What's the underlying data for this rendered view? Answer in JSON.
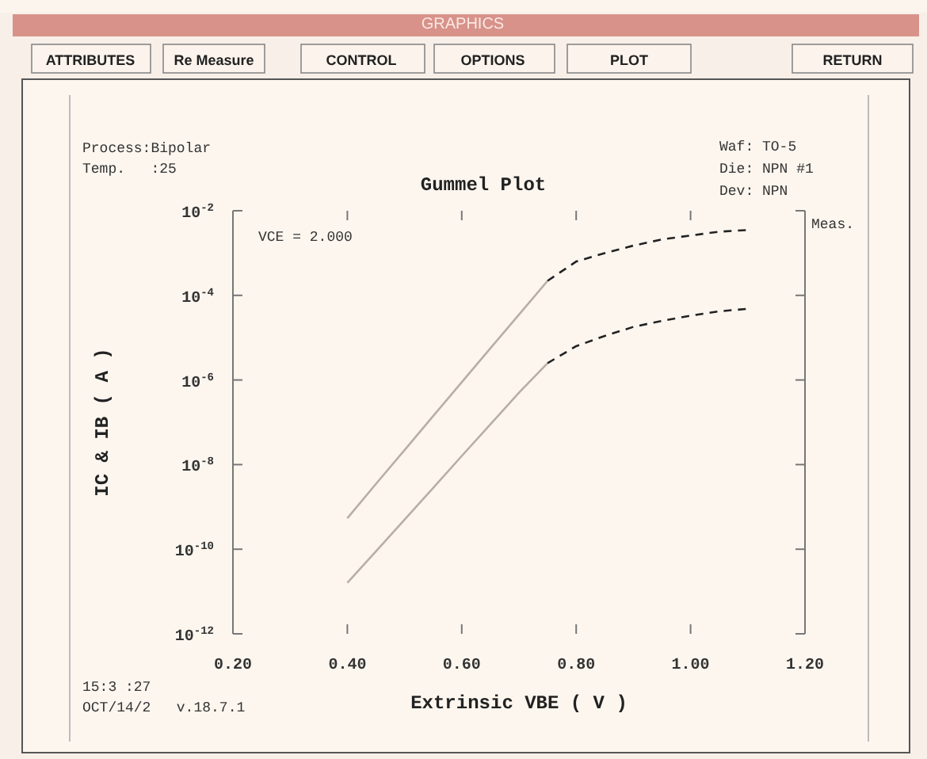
{
  "chart_data": {
    "type": "line",
    "title": "Gummel Plot",
    "xlabel": "Extrinsic VBE ( V )",
    "ylabel": "IC & IB ( A )",
    "log": true,
    "grid": false,
    "marker": "none",
    "xlim": [
      0.2,
      1.2
    ],
    "xticks": [
      {
        "value": 0.2,
        "label": "0.20"
      },
      {
        "value": 0.4,
        "label": "0.40"
      },
      {
        "value": 0.6,
        "label": "0.60"
      },
      {
        "value": 0.8,
        "label": "0.80"
      },
      {
        "value": 1.0,
        "label": "1.00"
      },
      {
        "value": 1.2,
        "label": "1.20"
      }
    ],
    "ylim": [
      1e-12,
      0.01
    ],
    "yticks": [
      {
        "value": 0.01,
        "label": "10$^{-2}$"
      },
      {
        "value": 0.0001,
        "label": "10$^{-4}$"
      },
      {
        "value": 1e-06,
        "label": "10$^{-6}$"
      },
      {
        "value": 1e-08,
        "label": "10$^{-8}$"
      },
      {
        "value": 1e-10,
        "label": "10$^{-10}$"
      },
      {
        "value": 1e-12,
        "label": "10$^{-12}$"
      }
    ],
    "series": [
      {
        "color": "#b8aea4",
        "line_style": "solid",
        "x": [
          0.4,
          0.45,
          0.5,
          0.55,
          0.6,
          0.65,
          0.7,
          0.75
        ],
        "values": [
          5.4e-10,
          3.5e-09,
          2.2e-08,
          1.4e-07,
          8.9e-07,
          5.6e-06,
          3.5e-05,
          0.00022
        ]
      },
      {
        "color": "#222222",
        "line_style": "dashed",
        "x": [
          0.75,
          0.8,
          0.85,
          0.9,
          0.95,
          1.0,
          1.05,
          1.1
        ],
        "values": [
          0.00022,
          0.00063,
          0.001,
          0.0015,
          0.0021,
          0.0026,
          0.0032,
          0.0035
        ]
      },
      {
        "color": "#b8aea4",
        "line_style": "solid",
        "x": [
          0.4,
          0.45,
          0.5,
          0.55,
          0.6,
          0.65,
          0.7,
          0.75
        ],
        "values": [
          1.6e-11,
          8.9e-11,
          5e-10,
          2.8e-09,
          1.6e-08,
          8.9e-08,
          5e-07,
          2.5e-06
        ]
      },
      {
        "color": "#222222",
        "line_style": "dashed",
        "x": [
          0.75,
          0.8,
          0.85,
          0.9,
          0.95,
          1.0,
          1.05,
          1.1
        ],
        "values": [
          2.5e-06,
          6.3e-06,
          1.1e-05,
          1.8e-05,
          2.5e-05,
          3.3e-05,
          4.2e-05,
          4.8e-05
        ]
      }
    ],
    "annotations": [
      "GRAPHICS",
      "ATTRIBUTES",
      "Re Measure",
      "CONTROL",
      "OPTIONS",
      "PLOT",
      "RETURN",
      "Process:Bipolar",
      "Temp.   :25",
      "Waf: TO-5",
      "Die: NPN #1",
      "Dev: NPN",
      "VCE = 2.000",
      "Meas.",
      "15:3 :27",
      "OCT/14/2   v.18.7.1"
    ]
  }
}
